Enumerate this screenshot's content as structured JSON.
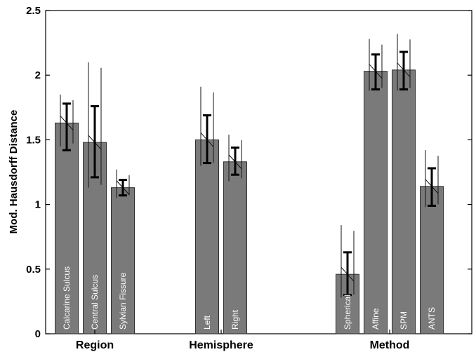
{
  "chart_data": {
    "type": "bar",
    "title": "",
    "xlabel": "",
    "ylabel": "Mod. Hausdorff Distance",
    "ylim": [
      0,
      2.5
    ],
    "yticks": [
      "0",
      "0.5",
      "1",
      "1.5",
      "2",
      "2.5"
    ],
    "groups": [
      {
        "label": "Region",
        "bars": [
          {
            "label": "Calcarine Sulcus",
            "value": 1.63,
            "err_low": 1.42,
            "err_high": 1.78,
            "thin_low": 1.45,
            "thin_high": 1.85
          },
          {
            "label": "Central Sulcus",
            "value": 1.48,
            "err_low": 1.21,
            "err_high": 1.76,
            "thin_low": 1.13,
            "thin_high": 2.1
          },
          {
            "label": "Sylvian Fissure",
            "value": 1.13,
            "err_low": 1.07,
            "err_high": 1.19,
            "thin_low": 1.05,
            "thin_high": 1.27
          }
        ]
      },
      {
        "label": "Hemisphere",
        "bars": [
          {
            "label": "Left",
            "value": 1.5,
            "err_low": 1.32,
            "err_high": 1.69,
            "thin_low": 1.3,
            "thin_high": 1.91
          },
          {
            "label": "Right",
            "value": 1.33,
            "err_low": 1.23,
            "err_high": 1.44,
            "thin_low": 1.18,
            "thin_high": 1.54
          }
        ]
      },
      {
        "label": "Method",
        "bars": [
          {
            "label": "Spherical",
            "value": 0.46,
            "err_low": 0.3,
            "err_high": 0.63,
            "thin_low": 0.28,
            "thin_high": 0.84
          },
          {
            "label": "Affine",
            "value": 2.03,
            "err_low": 1.89,
            "err_high": 2.16,
            "thin_low": 1.88,
            "thin_high": 2.28
          },
          {
            "label": "SPM",
            "value": 2.04,
            "err_low": 1.89,
            "err_high": 2.18,
            "thin_low": 1.88,
            "thin_high": 2.32
          },
          {
            "label": "ANTS",
            "value": 1.14,
            "err_low": 0.99,
            "err_high": 1.28,
            "thin_low": 0.98,
            "thin_high": 1.42
          }
        ]
      }
    ],
    "grid": false,
    "colors": {
      "bar": "#7a7a7a",
      "bar_edge": "#2f2f2f",
      "error": "#000000",
      "bar_text": "#ffffff"
    }
  }
}
